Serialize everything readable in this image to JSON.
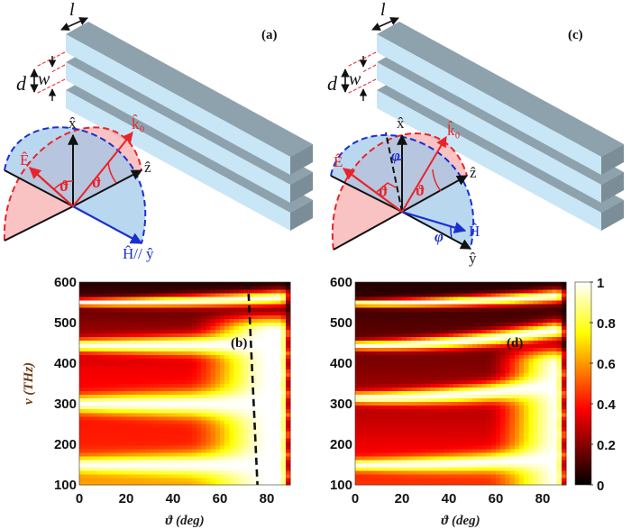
{
  "diagrams": [
    {
      "panel_label": "(a)",
      "dims": {
        "l": "l",
        "d": "d",
        "w": "w"
      },
      "axes": {
        "x": "x̂",
        "z": "ẑ",
        "y": "Ĥ// ŷ"
      },
      "vectors": {
        "k0": "k̂₀",
        "E": "Ê"
      },
      "angles": {
        "theta": "ϑ"
      }
    },
    {
      "panel_label": "(c)",
      "dims": {
        "l": "l",
        "d": "d",
        "w": "w"
      },
      "axes": {
        "x": "x̂",
        "z": "ẑ",
        "y": "ŷ",
        "H": "Ĥ"
      },
      "vectors": {
        "k0": "k̂₀",
        "E": "Ê"
      },
      "angles": {
        "theta": "ϑ",
        "phi": "φ"
      }
    }
  ],
  "colors": {
    "bar_front": "#c8e6f6",
    "bar_top": "#8ea2ad",
    "bar_end": "#7b8e98",
    "red": "#e8242a",
    "blue": "#1a2fd0",
    "pink_fill": "#f7b3b3",
    "blue_fill": "#a9cfee"
  },
  "chart_data": [
    {
      "type": "heatmap",
      "panel_label": "(b)",
      "xlabel": "ϑ (deg)",
      "ylabel": "ν (THz)",
      "xlim": [
        0,
        90
      ],
      "ylim": [
        100,
        600
      ],
      "x_ticks": [
        "0",
        "20",
        "40",
        "60",
        "80"
      ],
      "y_ticks": [
        "100",
        "200",
        "300",
        "400",
        "500",
        "600"
      ],
      "colormap": "hot",
      "resonance_bands": [
        {
          "nu_at_0deg": 150,
          "nu_at_85deg": 150,
          "width": 18
        },
        {
          "nu_at_0deg": 300,
          "nu_at_85deg": 300,
          "width": 20
        },
        {
          "nu_at_0deg": 445,
          "nu_at_85deg": 448,
          "width": 15
        },
        {
          "nu_at_0deg": 550,
          "nu_at_85deg": 562,
          "width": 9
        }
      ],
      "background_levels": [
        [
          100,
          0.62
        ],
        [
          200,
          0.42
        ],
        [
          260,
          0.4
        ],
        [
          380,
          0.36
        ],
        [
          500,
          0.2
        ],
        [
          600,
          0.05
        ]
      ],
      "bright_region": {
        "theta_from": 45,
        "theta_to": 82,
        "nu_below": 480
      },
      "dashed_line": {
        "points": [
          [
            72,
            600
          ],
          [
            76,
            100
          ]
        ]
      }
    },
    {
      "type": "heatmap",
      "panel_label": "(d)",
      "xlabel": "ϑ (deg)",
      "xlim": [
        0,
        90
      ],
      "ylim": [
        100,
        600
      ],
      "x_ticks": [
        "0",
        "20",
        "40",
        "60",
        "80"
      ],
      "y_ticks": [
        "100",
        "200",
        "300",
        "400",
        "500",
        "600"
      ],
      "colormap": "hot",
      "resonance_bands": [
        {
          "nu_at_0deg": 150,
          "nu_at_85deg": 165,
          "width": 14
        },
        {
          "nu_at_0deg": 315,
          "nu_at_85deg": 345,
          "width": 14
        },
        {
          "nu_at_0deg": 445,
          "nu_at_85deg": 482,
          "width": 11
        },
        {
          "nu_at_0deg": 548,
          "nu_at_85deg": 566,
          "width": 8
        }
      ],
      "background_levels": [
        [
          100,
          0.45
        ],
        [
          250,
          0.3
        ],
        [
          380,
          0.2
        ],
        [
          500,
          0.12
        ],
        [
          600,
          0.05
        ]
      ],
      "bright_region": {
        "theta_from": 55,
        "theta_to": 88,
        "nu_below": 400
      },
      "colorbar": {
        "range": [
          0,
          1
        ],
        "ticks": [
          "0",
          "0.2",
          "0.4",
          "0.6",
          "0.8",
          "1"
        ]
      }
    }
  ]
}
